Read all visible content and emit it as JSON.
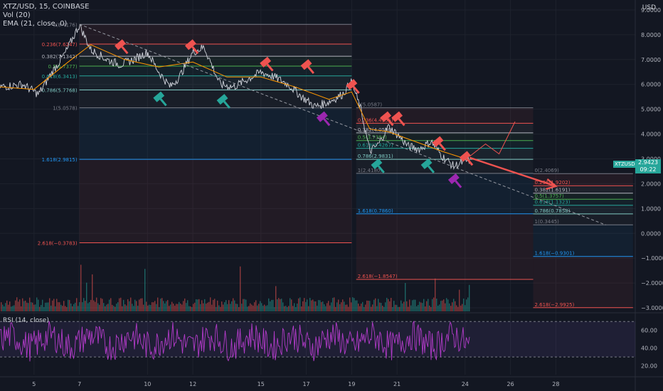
{
  "legend": {
    "symbol": "XTZ/USD, 15, COINBASE",
    "vol": "Vol (20)",
    "ema": "EMA (21, close, 0)",
    "rsi": "RSI (14, close)"
  },
  "currency": "USD",
  "price_tag": {
    "symbol": "XTZUSD",
    "price": "2.9423",
    "timer": "09:22"
  },
  "colors": {
    "bg": "#131722",
    "grid": "#1e222d",
    "green": "#26a69a",
    "red": "#ef5350",
    "purple": "#9c27b0",
    "fib": "#787b86",
    "rsi": "#b23bc9"
  },
  "chart_data": {
    "type": "candlestick",
    "symbol": "XTZ/USD",
    "interval": "15",
    "exchange": "COINBASE",
    "ylim": [
      -3.2,
      9.4
    ],
    "y_ticks": [
      "9.0000",
      "8.0000",
      "7.0000",
      "6.0000",
      "5.0000",
      "4.0000",
      "3.0000",
      "2.0000",
      "1.0000",
      "0.0000",
      "−1.0000",
      "−2.0000",
      "−3.0000"
    ],
    "y_tick_values": [
      9,
      8,
      7,
      6,
      5,
      4,
      3,
      2,
      1,
      0,
      -1,
      -2,
      -3
    ],
    "x_ticks": [
      "5",
      "7",
      "10",
      "12",
      "15",
      "17",
      "19",
      "21",
      "24",
      "26",
      "28"
    ],
    "x_tick_days": [
      5,
      7,
      10,
      12,
      15,
      17,
      19,
      21,
      24,
      26,
      28
    ],
    "xlim_days": [
      3.5,
      31.5
    ],
    "price_path": [
      [
        3.5,
        5.9
      ],
      [
        4.5,
        6.0
      ],
      [
        5.2,
        5.6
      ],
      [
        5.8,
        6.5
      ],
      [
        6.4,
        7.3
      ],
      [
        7.0,
        8.4
      ],
      [
        7.5,
        7.4
      ],
      [
        8.2,
        7.0
      ],
      [
        8.8,
        6.8
      ],
      [
        9.4,
        7.0
      ],
      [
        10.0,
        7.3
      ],
      [
        10.5,
        6.5
      ],
      [
        11.0,
        5.9
      ],
      [
        11.4,
        6.3
      ],
      [
        12.0,
        7.3
      ],
      [
        12.5,
        7.5
      ],
      [
        13.2,
        6.0
      ],
      [
        13.8,
        5.9
      ],
      [
        14.4,
        6.2
      ],
      [
        15.0,
        6.5
      ],
      [
        15.6,
        6.3
      ],
      [
        16.2,
        6.0
      ],
      [
        16.8,
        5.5
      ],
      [
        17.4,
        5.1
      ],
      [
        18.0,
        5.3
      ],
      [
        18.6,
        5.6
      ],
      [
        19.0,
        6.1
      ],
      [
        19.4,
        5.0
      ],
      [
        19.8,
        3.3
      ],
      [
        20.2,
        3.6
      ],
      [
        20.6,
        4.3
      ],
      [
        21.0,
        4.0
      ],
      [
        21.5,
        3.5
      ],
      [
        22.0,
        3.4
      ],
      [
        22.5,
        3.7
      ],
      [
        23.0,
        3.1
      ],
      [
        23.5,
        2.7
      ],
      [
        24.0,
        2.9
      ],
      [
        24.2,
        2.94
      ]
    ],
    "ema_path": [
      [
        3.5,
        5.9
      ],
      [
        5.0,
        5.8
      ],
      [
        6.5,
        6.9
      ],
      [
        7.5,
        7.6
      ],
      [
        9.0,
        7.0
      ],
      [
        10.5,
        6.7
      ],
      [
        12.0,
        6.9
      ],
      [
        13.5,
        6.3
      ],
      [
        15.0,
        6.3
      ],
      [
        16.5,
        5.9
      ],
      [
        18.0,
        5.4
      ],
      [
        19.0,
        5.7
      ],
      [
        19.8,
        4.2
      ],
      [
        20.6,
        4.1
      ],
      [
        21.5,
        3.8
      ],
      [
        23.0,
        3.3
      ],
      [
        24.2,
        2.95
      ]
    ],
    "trend_line": {
      "from": [
        7.0,
        8.42
      ],
      "to": [
        30.2,
        0.34
      ]
    },
    "fib_sets": [
      {
        "x_range": [
          7.0,
          19.0
        ],
        "levels": [
          {
            "label": "0(8.4176)",
            "value": 8.4176,
            "color": "#787b86"
          },
          {
            "label": "0.236(7.6247)",
            "value": 7.6247,
            "color": "#ef5350"
          },
          {
            "label": "0.382(7.1342)",
            "value": 7.1342,
            "color": "#b2b5be"
          },
          {
            "label": "0.5(6.7377)",
            "value": 6.7377,
            "color": "#4caf50"
          },
          {
            "label": "0.618(6.3413)",
            "value": 6.3413,
            "color": "#26a69a"
          },
          {
            "label": "0.786(5.7768)",
            "value": 5.7768,
            "color": "#80cbc4"
          },
          {
            "label": "1(5.0578)",
            "value": 5.0578,
            "color": "#787b86"
          },
          {
            "label": "1.618(2.9815)",
            "value": 2.9815,
            "color": "#2196f3"
          },
          {
            "label": "2.618(−0.3783)",
            "value": -0.3783,
            "color": "#ef5350"
          }
        ]
      },
      {
        "x_range": [
          19.2,
          27.0
        ],
        "levels": [
          {
            "label": "0(5.0587)",
            "value": 5.0587,
            "color": "#787b86"
          },
          {
            "label": "0.236(4.4355)",
            "value": 4.4355,
            "color": "#ef5350"
          },
          {
            "label": "0.382(4.0500)",
            "value": 4.05,
            "color": "#b2b5be"
          },
          {
            "label": "0.5(3.7384)",
            "value": 3.7384,
            "color": "#4caf50"
          },
          {
            "label": "0.618(3.4267)",
            "value": 3.4267,
            "color": "#26a69a"
          },
          {
            "label": "0.786(2.9831)",
            "value": 2.9831,
            "color": "#80cbc4"
          },
          {
            "label": "1(2.4180)",
            "value": 2.418,
            "color": "#787b86"
          },
          {
            "label": "1.618(0.7860)",
            "value": 0.786,
            "color": "#2196f3"
          },
          {
            "label": "2.618(−1.8547)",
            "value": -1.8547,
            "color": "#ef5350"
          }
        ]
      },
      {
        "x_range": [
          27.0,
          31.4
        ],
        "levels": [
          {
            "label": "0(2.4069)",
            "value": 2.4069,
            "color": "#787b86"
          },
          {
            "label": "0.236(1.9202)",
            "value": 1.9202,
            "color": "#ef5350"
          },
          {
            "label": "0.382(1.6191)",
            "value": 1.6191,
            "color": "#b2b5be"
          },
          {
            "label": "0.5(1.3757)",
            "value": 1.3757,
            "color": "#4caf50"
          },
          {
            "label": "0.618(1.1323)",
            "value": 1.1323,
            "color": "#26a69a"
          },
          {
            "label": "0.786(0.7858)",
            "value": 0.7858,
            "color": "#80cbc4"
          },
          {
            "label": "1(0.3445)",
            "value": 0.3445,
            "color": "#787b86"
          },
          {
            "label": "1.618(−0.9301)",
            "value": -0.9301,
            "color": "#2196f3"
          },
          {
            "label": "2.618(−2.9925)",
            "value": -2.9925,
            "color": "#ef5350"
          }
        ]
      }
    ],
    "signals": [
      {
        "day": 8.8,
        "price": 7.6,
        "kind": "sell"
      },
      {
        "day": 11.9,
        "price": 7.6,
        "kind": "sell"
      },
      {
        "day": 15.2,
        "price": 6.9,
        "kind": "sell"
      },
      {
        "day": 17.0,
        "price": 6.8,
        "kind": "sell"
      },
      {
        "day": 19.0,
        "price": 6.0,
        "kind": "sell"
      },
      {
        "day": 20.5,
        "price": 4.7,
        "kind": "sell"
      },
      {
        "day": 21.0,
        "price": 4.7,
        "kind": "sell"
      },
      {
        "day": 22.8,
        "price": 3.7,
        "kind": "sell"
      },
      {
        "day": 24.0,
        "price": 3.1,
        "kind": "sell"
      },
      {
        "day": 10.5,
        "price": 5.5,
        "kind": "buy"
      },
      {
        "day": 13.3,
        "price": 5.4,
        "kind": "buy"
      },
      {
        "day": 20.1,
        "price": 2.8,
        "kind": "buy"
      },
      {
        "day": 22.3,
        "price": 2.8,
        "kind": "buy"
      },
      {
        "day": 17.7,
        "price": 4.7,
        "kind": "strong"
      },
      {
        "day": 23.5,
        "price": 2.2,
        "kind": "strong"
      }
    ],
    "projection_up": [
      [
        24.2,
        3.1
      ],
      [
        24.9,
        3.6
      ],
      [
        25.5,
        3.2
      ],
      [
        26.2,
        4.5
      ]
    ],
    "projection_down": [
      [
        24.2,
        3.05
      ],
      [
        28.0,
        1.9
      ]
    ],
    "rsi": {
      "ylim": [
        10,
        75
      ],
      "y_ticks": [
        "60.00",
        "40.00",
        "20.00"
      ],
      "y_tick_values": [
        60,
        40,
        20
      ],
      "upper": 70,
      "lower": 30
    }
  }
}
